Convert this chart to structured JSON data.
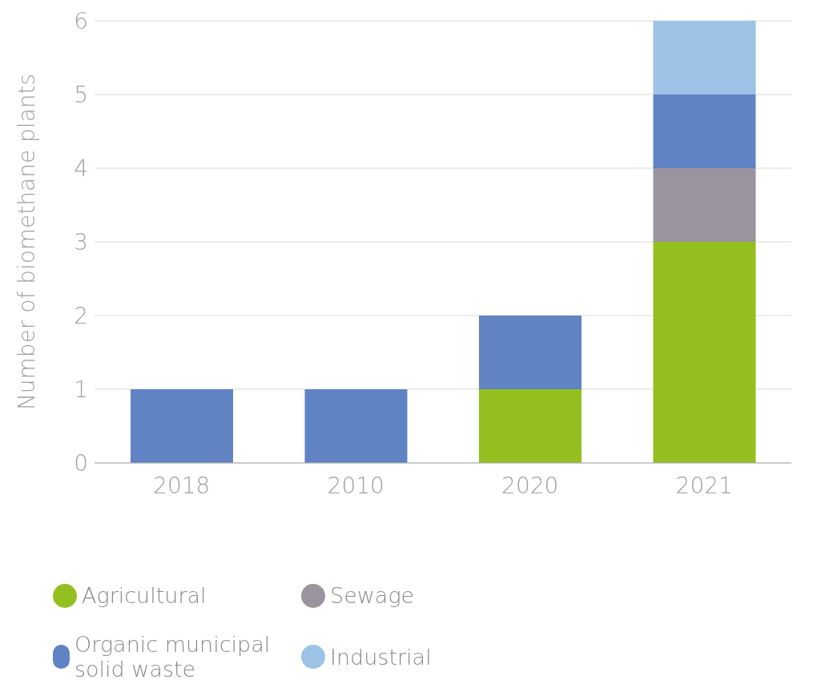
{
  "chart_data": {
    "type": "bar",
    "stacked": true,
    "ylabel": "Number of biomethane plants",
    "categories": [
      "2018",
      "2010",
      "2020",
      "2021"
    ],
    "series": [
      {
        "name": "Agricultural",
        "color": "#93c01f",
        "values": [
          0,
          0,
          1,
          3
        ]
      },
      {
        "name": "Sewage",
        "color": "#9a949f",
        "values": [
          0,
          0,
          0,
          1
        ]
      },
      {
        "name": "Organic municipal solid waste",
        "color": "#6083c3",
        "values": [
          1,
          1,
          1,
          1
        ]
      },
      {
        "name": "Industrial",
        "color": "#9cc2e6",
        "values": [
          0,
          0,
          0,
          1
        ]
      }
    ],
    "ylim": [
      0,
      6
    ],
    "yticks": [
      0,
      1,
      2,
      3,
      4,
      5,
      6
    ],
    "grid": "y",
    "legend": "bottom"
  }
}
